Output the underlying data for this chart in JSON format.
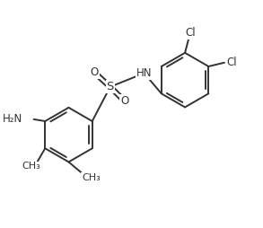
{
  "bg_color": "#ffffff",
  "line_color": "#333333",
  "line_width": 1.4,
  "font_size": 8.5,
  "figsize": [
    2.93,
    2.54
  ],
  "dpi": 100,
  "xlim": [
    -0.5,
    5.8
  ],
  "ylim": [
    -2.5,
    2.5
  ]
}
